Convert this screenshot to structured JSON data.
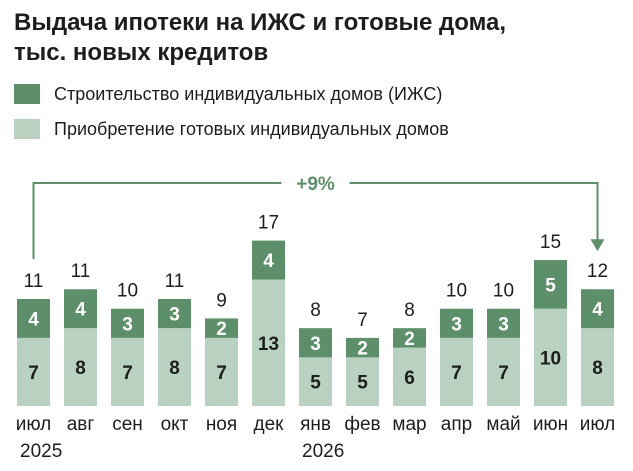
{
  "chart_data": {
    "type": "bar",
    "stacked": true,
    "title_line1": "Выдача ипотеки на ИЖС и готовые дома,",
    "title_line2": "тыс. новых кредитов",
    "categories": [
      "июл",
      "авг",
      "сен",
      "окт",
      "ноя",
      "дек",
      "янв",
      "фев",
      "мар",
      "апр",
      "май",
      "июн",
      "июл"
    ],
    "year_labels": [
      {
        "index": 0,
        "text": "2025"
      },
      {
        "index": 6,
        "text": "2026"
      }
    ],
    "series": [
      {
        "name": "Приобретение готовых индивидуальных домов",
        "color": "#b8d1c0",
        "values": [
          7,
          8,
          7,
          8,
          7,
          13,
          5,
          5,
          6,
          7,
          7,
          10,
          8
        ]
      },
      {
        "name": "Строительство индивидуальных домов (ИЖС)",
        "color": "#5d8f6a",
        "values": [
          4,
          4,
          3,
          3,
          2,
          4,
          3,
          2,
          2,
          3,
          3,
          5,
          4
        ]
      }
    ],
    "totals": [
      11,
      11,
      10,
      11,
      9,
      17,
      8,
      7,
      8,
      10,
      10,
      15,
      12
    ],
    "annotation": {
      "text": "+9%",
      "from_index": 0,
      "to_index": 12,
      "color": "#5d8f6a"
    }
  }
}
